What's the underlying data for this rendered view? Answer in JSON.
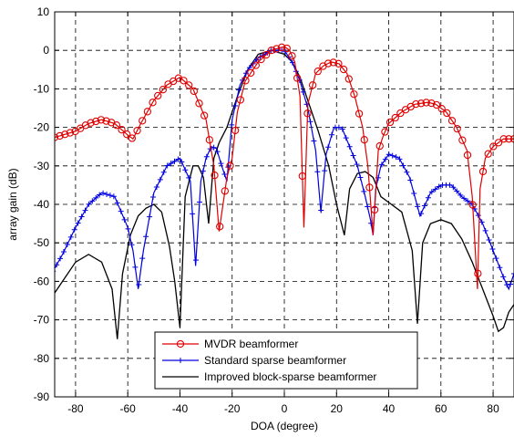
{
  "chart_data": {
    "type": "line",
    "xlabel": "DOA (degree)",
    "ylabel": "array gain (dB)",
    "xlim": [
      -88,
      88
    ],
    "ylim": [
      -90,
      10
    ],
    "xticks": [
      -80,
      -60,
      -40,
      -20,
      0,
      20,
      40,
      60,
      80
    ],
    "yticks": [
      10,
      0,
      -10,
      -20,
      -30,
      -40,
      -50,
      -60,
      -70,
      -80,
      -90
    ],
    "grid": true,
    "legend_position": "bottom-center",
    "series": [
      {
        "name": "MVDR beamformer",
        "color": "#e00000",
        "marker": "circle",
        "x": [
          -90,
          -85,
          -80,
          -75,
          -70,
          -65,
          -60,
          -58,
          -55,
          -50,
          -45,
          -40,
          -35,
          -30,
          -27,
          -25,
          -22,
          -20,
          -18,
          -15,
          -10,
          -5,
          0,
          2,
          4,
          6,
          7.5,
          9,
          12,
          15,
          18,
          21,
          24,
          27,
          30,
          32,
          34,
          36,
          38,
          40,
          45,
          50,
          55,
          58,
          62,
          66,
          70,
          72,
          74,
          75,
          77,
          80,
          84,
          88
        ],
        "y": [
          -23,
          -22,
          -21,
          -19,
          -18,
          -19,
          -22,
          -23,
          -19,
          -13,
          -9,
          -7,
          -10,
          -18,
          -30,
          -47,
          -33,
          -28,
          -16,
          -8,
          -3,
          0,
          1,
          0,
          -3,
          -12,
          -46,
          -14,
          -6,
          -4,
          -3,
          -3.5,
          -6,
          -12,
          -20,
          -30,
          -48,
          -26,
          -22,
          -19,
          -16,
          -14,
          -13.5,
          -14,
          -16,
          -20,
          -26,
          -38,
          -62,
          -36,
          -28,
          -25,
          -23,
          -23
        ]
      },
      {
        "name": "Standard sparse beamformer",
        "color": "#0000e0",
        "marker": "plus",
        "x": [
          -90,
          -85,
          -80,
          -75,
          -70,
          -65,
          -60,
          -58,
          -56,
          -54,
          -50,
          -45,
          -40,
          -36,
          -34,
          -32,
          -30,
          -28,
          -26,
          -24,
          -22,
          -20,
          -17,
          -14,
          -10,
          -5,
          0,
          3,
          6,
          9,
          12,
          14,
          16,
          19,
          22,
          25,
          28,
          31,
          33,
          34,
          35,
          37,
          40,
          44,
          48,
          52,
          56,
          60,
          64,
          68,
          72,
          76,
          80,
          84,
          86,
          88
        ],
        "y": [
          -59,
          -53,
          -46,
          -40,
          -37,
          -38,
          -46,
          -52,
          -62,
          -52,
          -37,
          -30,
          -28,
          -34,
          -56,
          -34,
          -28,
          -25,
          -25.5,
          -30,
          -34,
          -18,
          -9,
          -5,
          -2,
          0,
          0,
          -3,
          -8,
          -15,
          -26,
          -42,
          -27,
          -20,
          -20,
          -25,
          -30,
          -38,
          -44,
          -48,
          -36,
          -30,
          -27,
          -28,
          -33,
          -43,
          -37,
          -35,
          -35,
          -38,
          -40,
          -45,
          -52,
          -59,
          -62,
          -58
        ]
      },
      {
        "name": "Improved block-sparse beamformer",
        "color": "#000000",
        "marker": "none",
        "x": [
          -90,
          -85,
          -80,
          -75,
          -70,
          -66,
          -64,
          -62,
          -59,
          -56,
          -53,
          -50,
          -47,
          -44,
          -42,
          -40,
          -38,
          -35,
          -33,
          -31,
          -29,
          -27,
          -25,
          -22,
          -18,
          -14,
          -10,
          -5,
          0,
          3,
          6,
          9,
          13,
          17,
          20,
          23,
          25,
          28,
          31,
          34,
          37,
          41,
          45,
          49,
          51,
          53,
          56,
          60,
          64,
          68,
          72,
          76,
          80,
          82,
          84,
          86,
          88
        ],
        "y": [
          -65,
          -60,
          -55,
          -53,
          -55,
          -62,
          -75,
          -58,
          -48,
          -43,
          -41,
          -40,
          -42,
          -51,
          -60,
          -72,
          -38,
          -30,
          -30,
          -33,
          -45,
          -28,
          -24,
          -20,
          -12,
          -5,
          -1,
          0,
          -1,
          -3,
          -7,
          -13,
          -21,
          -30,
          -40,
          -48,
          -36,
          -32,
          -31.5,
          -33,
          -38,
          -40,
          -42,
          -52,
          -71,
          -50,
          -45,
          -44,
          -45,
          -49,
          -55,
          -62,
          -69,
          -73,
          -72,
          -68,
          -66
        ]
      }
    ]
  }
}
